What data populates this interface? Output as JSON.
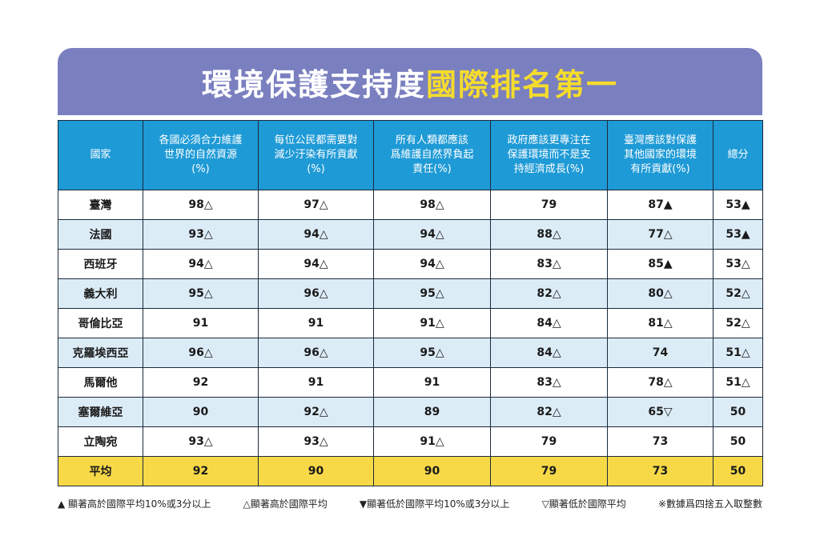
{
  "title": {
    "part1": "環境保護支持度",
    "part2": "國際排名第一"
  },
  "colors": {
    "title_bg": "#7a7fc0",
    "title_text": "#ffffff",
    "title_highlight": "#f5dc2c",
    "header_bg": "#1e9ad6",
    "row_alt": "#dcecf7",
    "avg_row": "#f7d948"
  },
  "chart_data": {
    "type": "table",
    "columns": [
      "國家",
      "各國必須合力維護世界的自然資源(%)",
      "每位公民都需要對減少汙染有所貢獻(%)",
      "所有人類都應該爲維護自然界負起責任(%)",
      "政府應該更專注在保護環境而不是支持經濟成長(%)",
      "臺灣應該對保護其他國家的環境有所貢獻(%)",
      "總分"
    ],
    "rows": [
      [
        "臺灣",
        "98△",
        "97△",
        "98△",
        "79",
        "87▲",
        "53▲"
      ],
      [
        "法國",
        "93△",
        "94△",
        "94△",
        "88△",
        "77△",
        "53▲"
      ],
      [
        "西班牙",
        "94△",
        "94△",
        "94△",
        "83△",
        "85▲",
        "53△"
      ],
      [
        "義大利",
        "95△",
        "96△",
        "95△",
        "82△",
        "80△",
        "52△"
      ],
      [
        "哥倫比亞",
        "91",
        "91",
        "91△",
        "84△",
        "81△",
        "52△"
      ],
      [
        "克羅埃西亞",
        "96△",
        "96△",
        "95△",
        "84△",
        "74",
        "51△"
      ],
      [
        "馬爾他",
        "92",
        "91",
        "91",
        "83△",
        "78△",
        "51△"
      ],
      [
        "塞爾維亞",
        "90",
        "92△",
        "89",
        "82△",
        "65▽",
        "50"
      ],
      [
        "立陶宛",
        "93△",
        "93△",
        "91△",
        "79",
        "73",
        "50"
      ]
    ],
    "average_row": [
      "平均",
      "92",
      "90",
      "90",
      "79",
      "73",
      "50"
    ]
  },
  "header": [
    [
      "國家"
    ],
    [
      "各國必須合力維護",
      "世界的自然資源",
      "(%)"
    ],
    [
      "每位公民都需要對",
      "減少汙染有所貢獻",
      "(%)"
    ],
    [
      "所有人類都應該",
      "爲維護自然界負起",
      "責任(%)"
    ],
    [
      "政府應該更專注在",
      "保護環境而不是支",
      "持經濟成長(%)"
    ],
    [
      "臺灣應該對保護",
      "其他國家的環境",
      "有所貢獻(%)"
    ],
    [
      "總分"
    ]
  ],
  "legend": [
    "▲ 顯著高於國際平均10%或3分以上",
    "△顯著高於國際平均",
    "▼顯著低於國際平均10%或3分以上",
    "▽顯著低於國際平均",
    "※數據爲四捨五入取整數"
  ]
}
